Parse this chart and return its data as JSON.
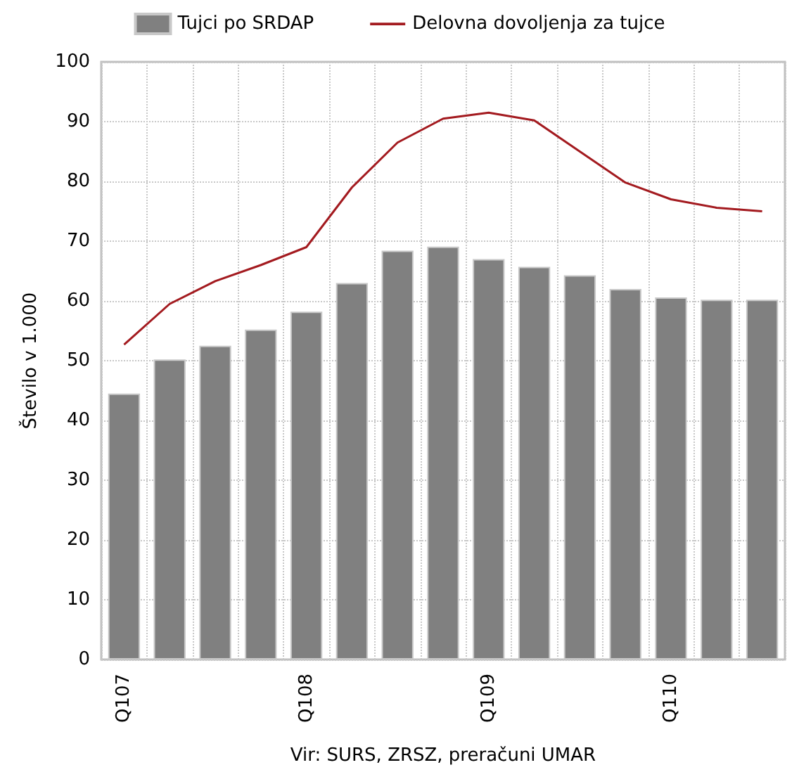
{
  "chart_data": {
    "type": "bar",
    "ylabel": "Število v 1.000",
    "xlabel": "Vir: SURS, ZRSZ, preračuni UMAR",
    "categories": [
      "Q107",
      null,
      null,
      null,
      "Q108",
      null,
      null,
      null,
      "Q109",
      null,
      null,
      null,
      "Q110",
      null,
      null
    ],
    "series": [
      {
        "name": "Tujci po SRDAP",
        "color": "#808080",
        "values": [
          44.5,
          50.2,
          52.5,
          55.2,
          58.2,
          63,
          68.4,
          69.1,
          67,
          65.7,
          64.3,
          62,
          60.6,
          60.2,
          60.2
        ]
      },
      {
        "name": "Delovna dovoljenja za tujce",
        "type": "line",
        "color": "#a31a1f",
        "values": [
          52.7,
          59.5,
          63.3,
          66,
          69,
          79,
          86.5,
          90.5,
          91.5,
          90.2,
          85,
          79.8,
          77,
          75.6,
          75
        ]
      }
    ],
    "ylim": [
      0,
      100
    ],
    "yticks": [
      0,
      10,
      20,
      30,
      40,
      50,
      60,
      70,
      80,
      90,
      100
    ],
    "grid": true,
    "legend": "top",
    "marker": "none",
    "line_style": "solid"
  }
}
